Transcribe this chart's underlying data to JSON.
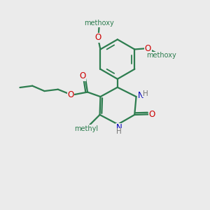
{
  "bg_color": "#ebebeb",
  "bond_color": "#2d7d4f",
  "bond_width": 1.6,
  "atom_colors": {
    "O": "#cc0000",
    "N": "#0000bb",
    "H": "#777777",
    "C": "#2d7d4f"
  },
  "font_size_atom": 8.5,
  "font_size_H": 7.5,
  "font_size_methyl": 7.5,
  "fig_width": 3.0,
  "fig_height": 3.0,
  "xlim": [
    0,
    10
  ],
  "ylim": [
    0,
    10
  ]
}
